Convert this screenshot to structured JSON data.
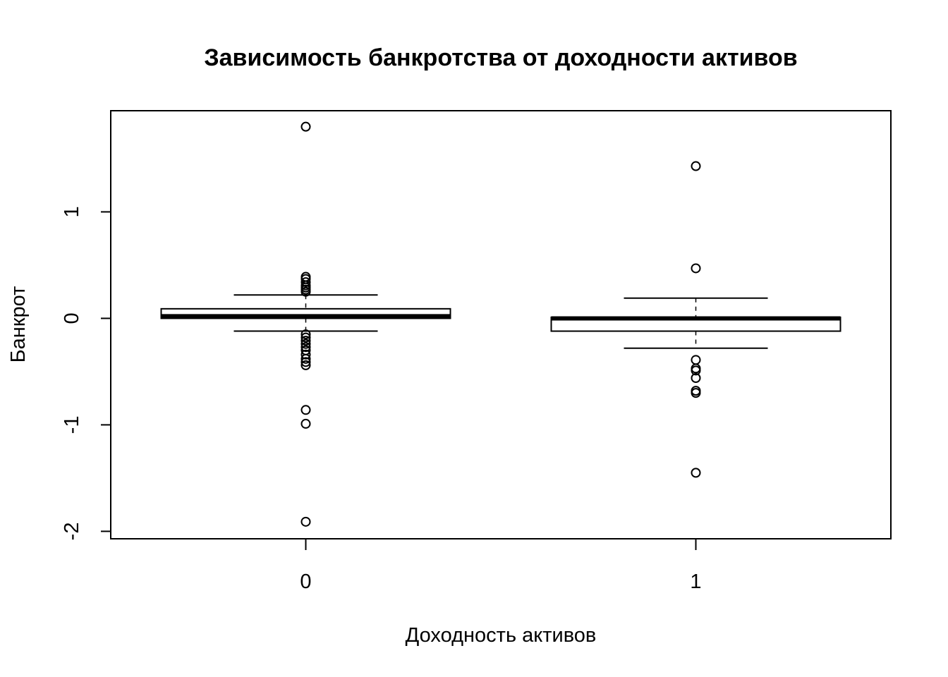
{
  "chart_data": {
    "type": "boxplot",
    "title": "Зависимость банкротства от доходности активов",
    "xlabel": "Доходность активов",
    "ylabel": "Банкрот",
    "categories": [
      "0",
      "1"
    ],
    "yticks": [
      "-2",
      "-1",
      "0",
      "1"
    ],
    "ytick_values": [
      -2,
      -1,
      0,
      1
    ],
    "ylim": [
      -2.07,
      1.95
    ],
    "grid": false,
    "legend": "none",
    "boxes": [
      {
        "category": "0",
        "q1": 0.0,
        "median": 0.02,
        "q3": 0.09,
        "whisker_low": -0.12,
        "whisker_high": 0.22,
        "outliers": [
          1.8,
          0.39,
          0.37,
          0.34,
          0.31,
          0.29,
          0.27,
          0.25,
          -0.15,
          -0.18,
          -0.21,
          -0.24,
          -0.27,
          -0.3,
          -0.34,
          -0.38,
          -0.41,
          -0.44,
          -0.86,
          -0.99,
          -1.91
        ]
      },
      {
        "category": "1",
        "q1": -0.12,
        "median": 0.0,
        "q3": 0.01,
        "whisker_low": -0.28,
        "whisker_high": 0.19,
        "outliers": [
          1.43,
          0.47,
          -0.39,
          -0.47,
          -0.49,
          -0.56,
          -0.68,
          -0.7,
          -1.45
        ]
      }
    ]
  }
}
